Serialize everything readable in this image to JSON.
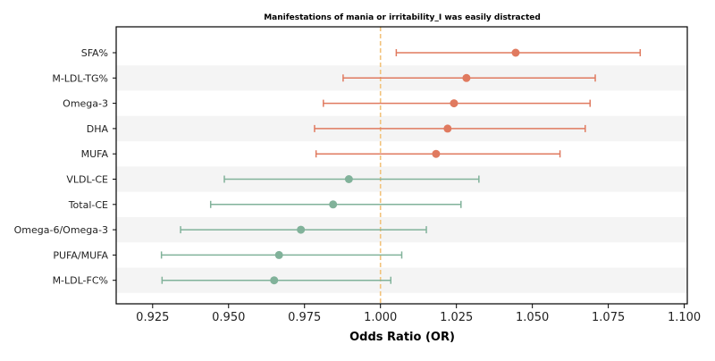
{
  "chart_data": {
    "type": "forest",
    "title": "Manifestations of mania or irritability_I was easily distracted",
    "xlabel": "Odds Ratio (OR)",
    "xlim": [
      0.913,
      1.101
    ],
    "xticks": [
      "0.925",
      "0.950",
      "0.975",
      "1.000",
      "1.025",
      "1.050",
      "1.075",
      "1.100"
    ],
    "reference_line": 1.0,
    "colors": {
      "positive": "#e07a5f",
      "negative": "#81b29a",
      "reference": "#f2c27a",
      "stripe": "#f4f4f4"
    },
    "rows": [
      {
        "label": "SFA%",
        "or": 1.0445,
        "lo": 1.0052,
        "hi": 1.0855,
        "group": "positive"
      },
      {
        "label": "M-LDL-TG%",
        "or": 1.0283,
        "lo": 0.9877,
        "hi": 1.0707,
        "group": "positive"
      },
      {
        "label": "Omega-3",
        "or": 1.0242,
        "lo": 0.9812,
        "hi": 1.069,
        "group": "positive"
      },
      {
        "label": "DHA",
        "or": 1.0221,
        "lo": 0.9783,
        "hi": 1.0674,
        "group": "positive"
      },
      {
        "label": "MUFA",
        "or": 1.0183,
        "lo": 0.9788,
        "hi": 1.0591,
        "group": "positive"
      },
      {
        "label": "VLDL-CE",
        "or": 0.9896,
        "lo": 0.9486,
        "hi": 1.0324,
        "group": "negative"
      },
      {
        "label": "Total-CE",
        "or": 0.9844,
        "lo": 0.9441,
        "hi": 1.0265,
        "group": "negative"
      },
      {
        "label": "Omega-6/Omega-3",
        "or": 0.9738,
        "lo": 0.9342,
        "hi": 1.0151,
        "group": "negative"
      },
      {
        "label": "PUFA/MUFA",
        "or": 0.9666,
        "lo": 0.9279,
        "hi": 1.007,
        "group": "negative"
      },
      {
        "label": "M-LDL-FC%",
        "or": 0.965,
        "lo": 0.9281,
        "hi": 1.0034,
        "group": "negative"
      }
    ]
  }
}
